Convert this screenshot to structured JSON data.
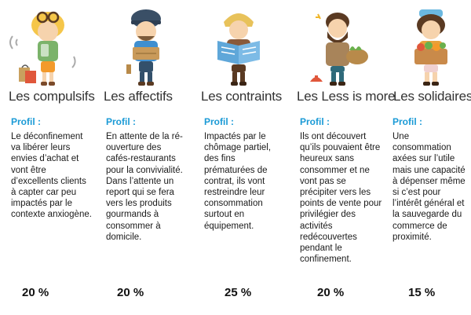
{
  "columns": [
    {
      "title": "Les compulsifs",
      "profil_label": "Profil :",
      "description": "Le déconfinement va libérer leurs envies d’achat et vont être d’excellents clients à capter car peu impactés par le contexte anxiogène.",
      "percentage": "20 %"
    },
    {
      "title": "Les affectifs",
      "profil_label": "Profil :",
      "description": "En attente de la ré-ouverture des cafés-restaurants pour la convivialité. Dans l’attente un report qui se fera vers les produits gourmands à consommer à domicile.",
      "percentage": "20 %"
    },
    {
      "title": "Les contraints",
      "profil_label": "Profil :",
      "description": "Impactés par le chômage partiel, des fins prématurées de contrat, ils vont restreindre leur consommation surtout en équipement.",
      "percentage": "25 %"
    },
    {
      "title": "Les Less is more",
      "profil_label": "Profil :",
      "description": "Ils ont découvert qu’ils pouvaient être heureux sans consommer et ne vont pas se précipiter vers les points de vente pour privilégier des activités redécouvertes pendant le confinement.",
      "percentage": "20 %"
    },
    {
      "title": "Les solidaires",
      "profil_label": "Profil :",
      "description": "Une consommation axées sur l’utile mais une capacité à dépenser même si c’est pour l’intérêt général et la sauvegarde du commerce de proximité.",
      "percentage": "15 %"
    }
  ]
}
